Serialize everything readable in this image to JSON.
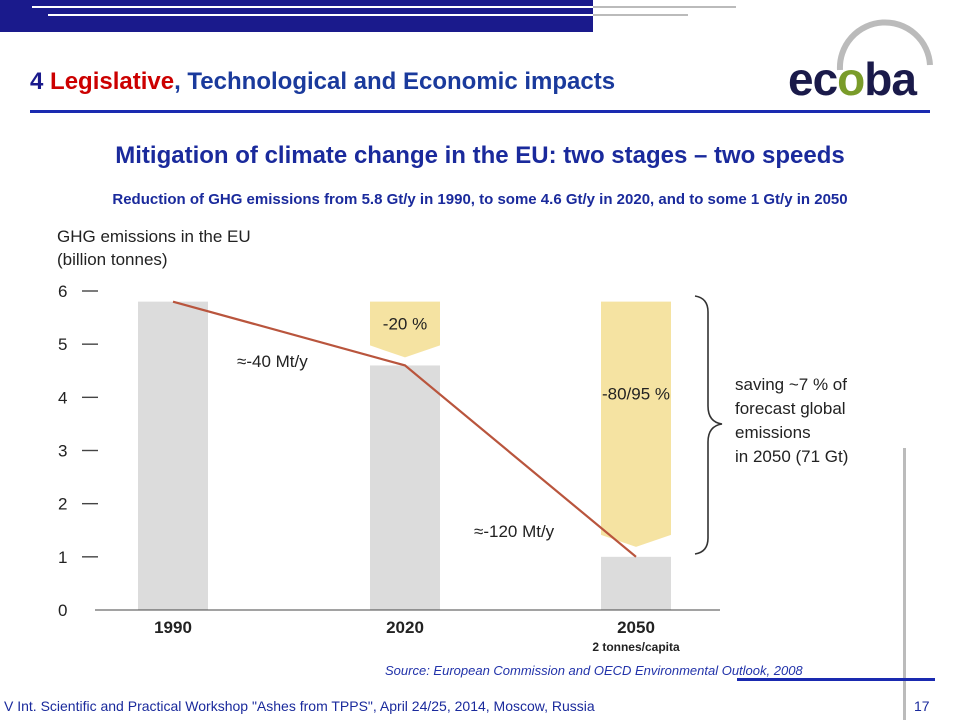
{
  "header": {
    "title_number": "4",
    "title_word1": "Legislative",
    "title_rest": ", Technological and Economic impacts",
    "logo_prefix": "ec",
    "logo_o": "o",
    "logo_suffix": "ba"
  },
  "slide": {
    "subtitle": "Mitigation of climate change in the EU: two stages – two speeds",
    "description": "Reduction of GHG emissions from 5.8 Gt/y in 1990, to some 4.6 Gt/y in 2020, and to some 1 Gt/y in 2050",
    "source": "Source: European Commission and OECD Environmental Outlook, 2008",
    "footer": "V Int. Scientific and Practical Workshop \"Ashes from TPPS\", April 24/25, 2014, Moscow, Russia",
    "page_number": "17"
  },
  "colors": {
    "header_blue": "#1a2a9c",
    "title_red": "#cc0000",
    "bar_grey": "#dcdcdc",
    "reduction_yellow": "#f5e3a2",
    "trend_line": "#b9553d"
  },
  "chart_data": {
    "type": "bar",
    "title": "GHG emissions in the EU",
    "subtitle": "(billion tonnes)",
    "categories": [
      "1990",
      "2020",
      "2050"
    ],
    "category_note": "2 tonnes/capita",
    "values": [
      5.8,
      4.6,
      1.0
    ],
    "ylim": [
      0,
      6
    ],
    "yticks": [
      "0",
      "1",
      "2",
      "3",
      "4",
      "5",
      "6"
    ],
    "reductions": [
      {
        "category": "2020",
        "label": "-20 %",
        "from": 5.8,
        "to": 4.6
      },
      {
        "category": "2050",
        "label": "-80/95 %",
        "from": 5.8,
        "to": 1.0
      }
    ],
    "trend_line": {
      "values": [
        5.8,
        4.6,
        1.0
      ]
    },
    "annotations": [
      "≈-40 Mt/y",
      "≈-120 Mt/y"
    ],
    "brace_note": [
      "saving ~7 % of",
      "forecast global",
      "emissions",
      "in 2050 (71 Gt)"
    ]
  }
}
